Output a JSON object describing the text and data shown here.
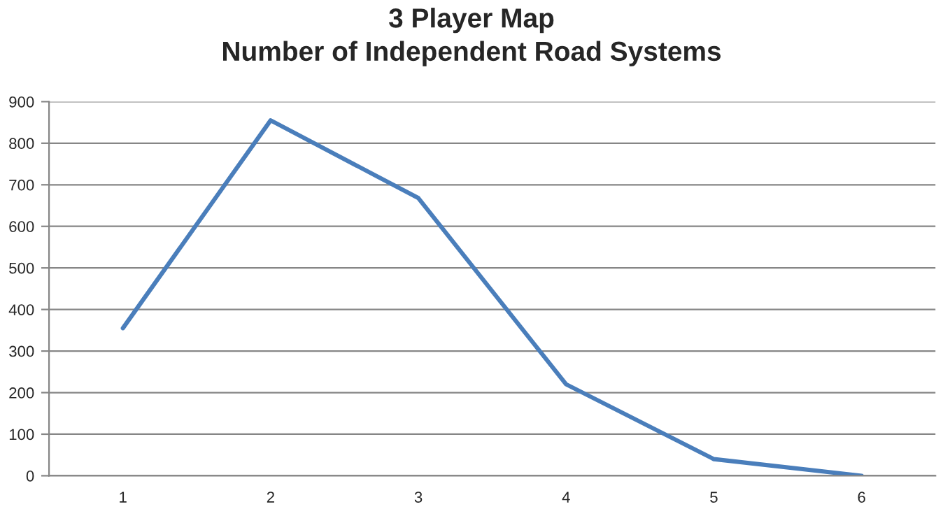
{
  "chart_data": {
    "type": "line",
    "title": "3 Player Map\nNumber of Independent Road Systems",
    "categories": [
      "1",
      "2",
      "3",
      "4",
      "5",
      "6"
    ],
    "series": [
      {
        "color": "#4a7ebb",
        "values": [
          355,
          855,
          668,
          220,
          40,
          0
        ]
      }
    ],
    "ylim": [
      0,
      900
    ],
    "yticks": [
      0,
      100,
      200,
      300,
      400,
      500,
      600,
      700,
      800,
      900
    ],
    "grid": "y",
    "marker": "none",
    "line_style": "solid"
  }
}
